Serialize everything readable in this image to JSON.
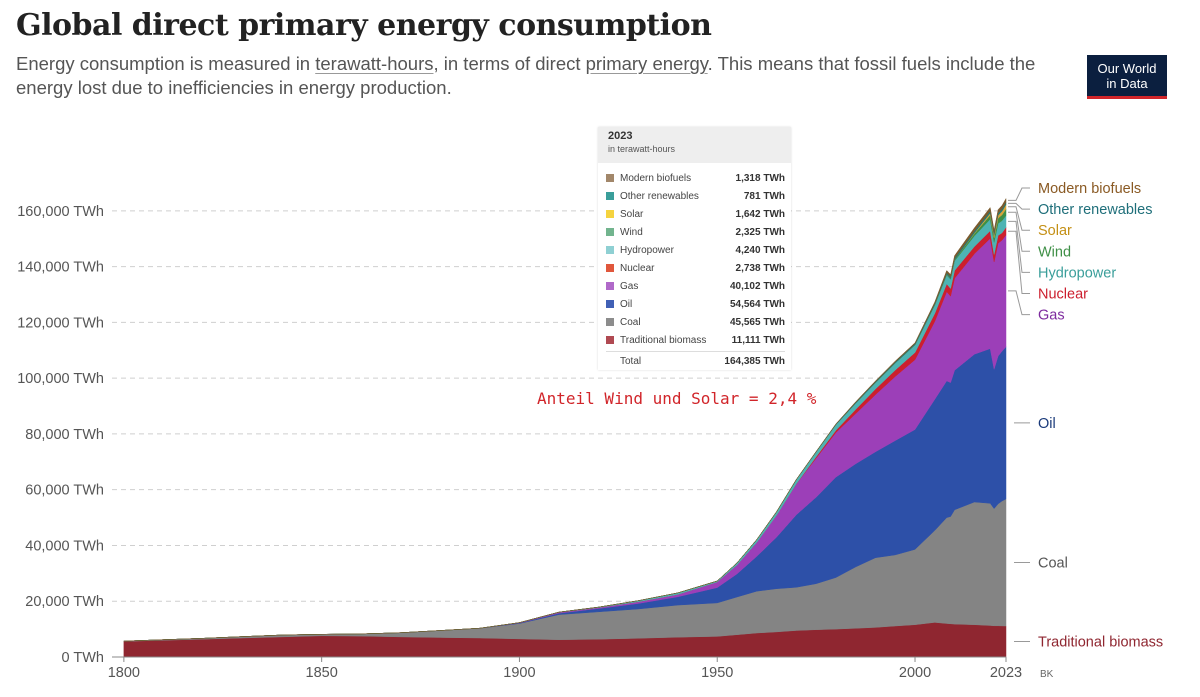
{
  "header": {
    "title": "Global direct primary energy consumption",
    "subtitle_parts": [
      "Energy consumption is measured in ",
      "terawatt-hours",
      ", in terms of direct ",
      "primary energy",
      ". This means that fossil fuels include the energy lost due to inefficiencies in energy production."
    ]
  },
  "logo": {
    "line1": "Our World",
    "line2": "in Data"
  },
  "annotation": "Anteil Wind und Solar = 2,4 %",
  "footer_mark": "BK",
  "tooltip": {
    "year": "2023",
    "unit": "in terawatt-hours",
    "rows": [
      {
        "name": "Modern biofuels",
        "value": "1,318 TWh",
        "color": "#a2876a"
      },
      {
        "name": "Other renewables",
        "value": "781 TWh",
        "color": "#3a9e9a"
      },
      {
        "name": "Solar",
        "value": "1,642 TWh",
        "color": "#f5d33f"
      },
      {
        "name": "Wind",
        "value": "2,325 TWh",
        "color": "#72b48e"
      },
      {
        "name": "Hydropower",
        "value": "4,240 TWh",
        "color": "#8fd0d3"
      },
      {
        "name": "Nuclear",
        "value": "2,738 TWh",
        "color": "#e0573c"
      },
      {
        "name": "Gas",
        "value": "40,102 TWh",
        "color": "#b069c9"
      },
      {
        "name": "Oil",
        "value": "54,564 TWh",
        "color": "#4160b5"
      },
      {
        "name": "Coal",
        "value": "45,565 TWh",
        "color": "#8c8c8c"
      },
      {
        "name": "Traditional biomass",
        "value": "11,111 TWh",
        "color": "#b04a52"
      }
    ],
    "total_label": "Total",
    "total_value": "164,385 TWh"
  },
  "chart_data": {
    "type": "area",
    "stacked": true,
    "title": "Global direct primary energy consumption",
    "unit": "TWh",
    "x": [
      1800,
      1810,
      1820,
      1830,
      1840,
      1850,
      1860,
      1870,
      1880,
      1890,
      1900,
      1910,
      1920,
      1930,
      1940,
      1950,
      1955,
      1960,
      1965,
      1970,
      1975,
      1980,
      1985,
      1990,
      1995,
      2000,
      2005,
      2008,
      2009,
      2010,
      2015,
      2019,
      2020,
      2021,
      2022,
      2023
    ],
    "xlim": [
      1797,
      2023
    ],
    "ylim": [
      0,
      175000
    ],
    "yticks": [
      0,
      20000,
      40000,
      60000,
      80000,
      100000,
      120000,
      140000,
      160000
    ],
    "ytick_labels": [
      "0 TWh",
      "20,000 TWh",
      "40,000 TWh",
      "60,000 TWh",
      "80,000 TWh",
      "100,000 TWh",
      "120,000 TWh",
      "140,000 TWh",
      "160,000 TWh"
    ],
    "xticks": [
      1800,
      1850,
      1900,
      1950,
      2000,
      2023
    ],
    "xtick_labels": [
      "1800",
      "1850",
      "1900",
      "1950",
      "2000",
      "2023"
    ],
    "series": [
      {
        "name": "Traditional biomass",
        "color": "#8f2630",
        "label_color": "#8f2630",
        "values": [
          5600,
          6000,
          6400,
          6800,
          7200,
          7600,
          7500,
          7200,
          7000,
          6800,
          6500,
          6200,
          6400,
          6700,
          7100,
          7400,
          8000,
          8600,
          9000,
          9500,
          9800,
          10000,
          10300,
          10600,
          11100,
          11600,
          12400,
          12000,
          11900,
          11800,
          11600,
          11300,
          11200,
          11200,
          11150,
          11111
        ]
      },
      {
        "name": "Coal",
        "color": "#848484",
        "label_color": "#555555",
        "values": [
          100,
          200,
          300,
          500,
          700,
          550,
          800,
          1500,
          2500,
          3500,
          5500,
          9000,
          9800,
          10500,
          11500,
          12000,
          13500,
          15000,
          15500,
          15500,
          16500,
          18500,
          22000,
          25000,
          25500,
          27000,
          33000,
          38000,
          38500,
          41000,
          44000,
          43800,
          42000,
          43700,
          44800,
          45565
        ]
      },
      {
        "name": "Oil",
        "color": "#2d50a8",
        "label_color": "#1a3a7a",
        "values": [
          0,
          0,
          0,
          0,
          0,
          0,
          0,
          0,
          0,
          20,
          200,
          500,
          1200,
          2000,
          3000,
          5500,
          8300,
          12500,
          18500,
          26000,
          31000,
          36000,
          37000,
          38000,
          41000,
          43000,
          47000,
          49000,
          48000,
          50000,
          53000,
          55500,
          50000,
          53000,
          53700,
          54564
        ]
      },
      {
        "name": "Gas",
        "color": "#9c3fb8",
        "label_color": "#7d2a9e",
        "values": [
          0,
          0,
          0,
          0,
          0,
          0,
          0,
          0,
          0,
          20,
          100,
          300,
          300,
          600,
          800,
          2000,
          3200,
          5000,
          7800,
          11000,
          14000,
          16000,
          18000,
          20500,
          23000,
          25000,
          28000,
          32000,
          31000,
          33000,
          36000,
          39500,
          38500,
          40500,
          39800,
          40102
        ]
      },
      {
        "name": "Nuclear",
        "color": "#cc1f2e",
        "label_color": "#cc1f2e",
        "values": [
          0,
          0,
          0,
          0,
          0,
          0,
          0,
          0,
          0,
          0,
          0,
          0,
          0,
          0,
          0,
          0,
          0,
          0,
          10,
          70,
          500,
          800,
          1500,
          2000,
          2300,
          2600,
          2800,
          2800,
          2750,
          2800,
          2600,
          2750,
          2650,
          2800,
          2650,
          2738
        ]
      },
      {
        "name": "Hydropower",
        "color": "#4db3b3",
        "label_color": "#3a9e9a",
        "values": [
          0,
          0,
          0,
          0,
          0,
          0,
          0,
          0,
          0,
          0,
          50,
          100,
          200,
          400,
          600,
          350,
          750,
          1000,
          1250,
          1500,
          1700,
          2000,
          2200,
          2300,
          2500,
          2700,
          3000,
          3200,
          3300,
          3450,
          3800,
          4200,
          4350,
          4300,
          4350,
          4240
        ]
      },
      {
        "name": "Wind",
        "color": "#3e8f46",
        "label_color": "#3e8f46",
        "values": [
          0,
          0,
          0,
          0,
          0,
          0,
          0,
          0,
          0,
          0,
          0,
          0,
          0,
          0,
          0,
          0,
          0,
          0,
          0,
          0,
          0,
          0,
          0,
          0,
          0,
          30,
          100,
          220,
          280,
          340,
          820,
          1420,
          1600,
          1850,
          2100,
          2325
        ]
      },
      {
        "name": "Solar",
        "color": "#d8a43a",
        "label_color": "#c49016",
        "values": [
          0,
          0,
          0,
          0,
          0,
          0,
          0,
          0,
          0,
          0,
          0,
          0,
          0,
          0,
          0,
          0,
          0,
          0,
          0,
          0,
          0,
          0,
          0,
          0,
          0,
          0,
          5,
          15,
          20,
          30,
          250,
          720,
          850,
          1050,
          1300,
          1642
        ]
      },
      {
        "name": "Other renewables",
        "color": "#1f7a77",
        "label_color": "#1f6f7a",
        "values": [
          0,
          0,
          0,
          0,
          0,
          0,
          0,
          0,
          0,
          0,
          0,
          0,
          0,
          0,
          0,
          0,
          0,
          50,
          80,
          100,
          150,
          200,
          300,
          350,
          400,
          450,
          500,
          550,
          580,
          620,
          700,
          740,
          740,
          760,
          770,
          781
        ]
      },
      {
        "name": "Modern biofuels",
        "color": "#7a5a2d",
        "label_color": "#8a5a24",
        "values": [
          0,
          0,
          0,
          0,
          0,
          0,
          0,
          0,
          0,
          0,
          0,
          0,
          0,
          0,
          0,
          0,
          0,
          0,
          0,
          0,
          0,
          100,
          200,
          250,
          300,
          300,
          500,
          800,
          850,
          900,
          1100,
          1250,
          1150,
          1250,
          1300,
          1318
        ]
      }
    ]
  }
}
